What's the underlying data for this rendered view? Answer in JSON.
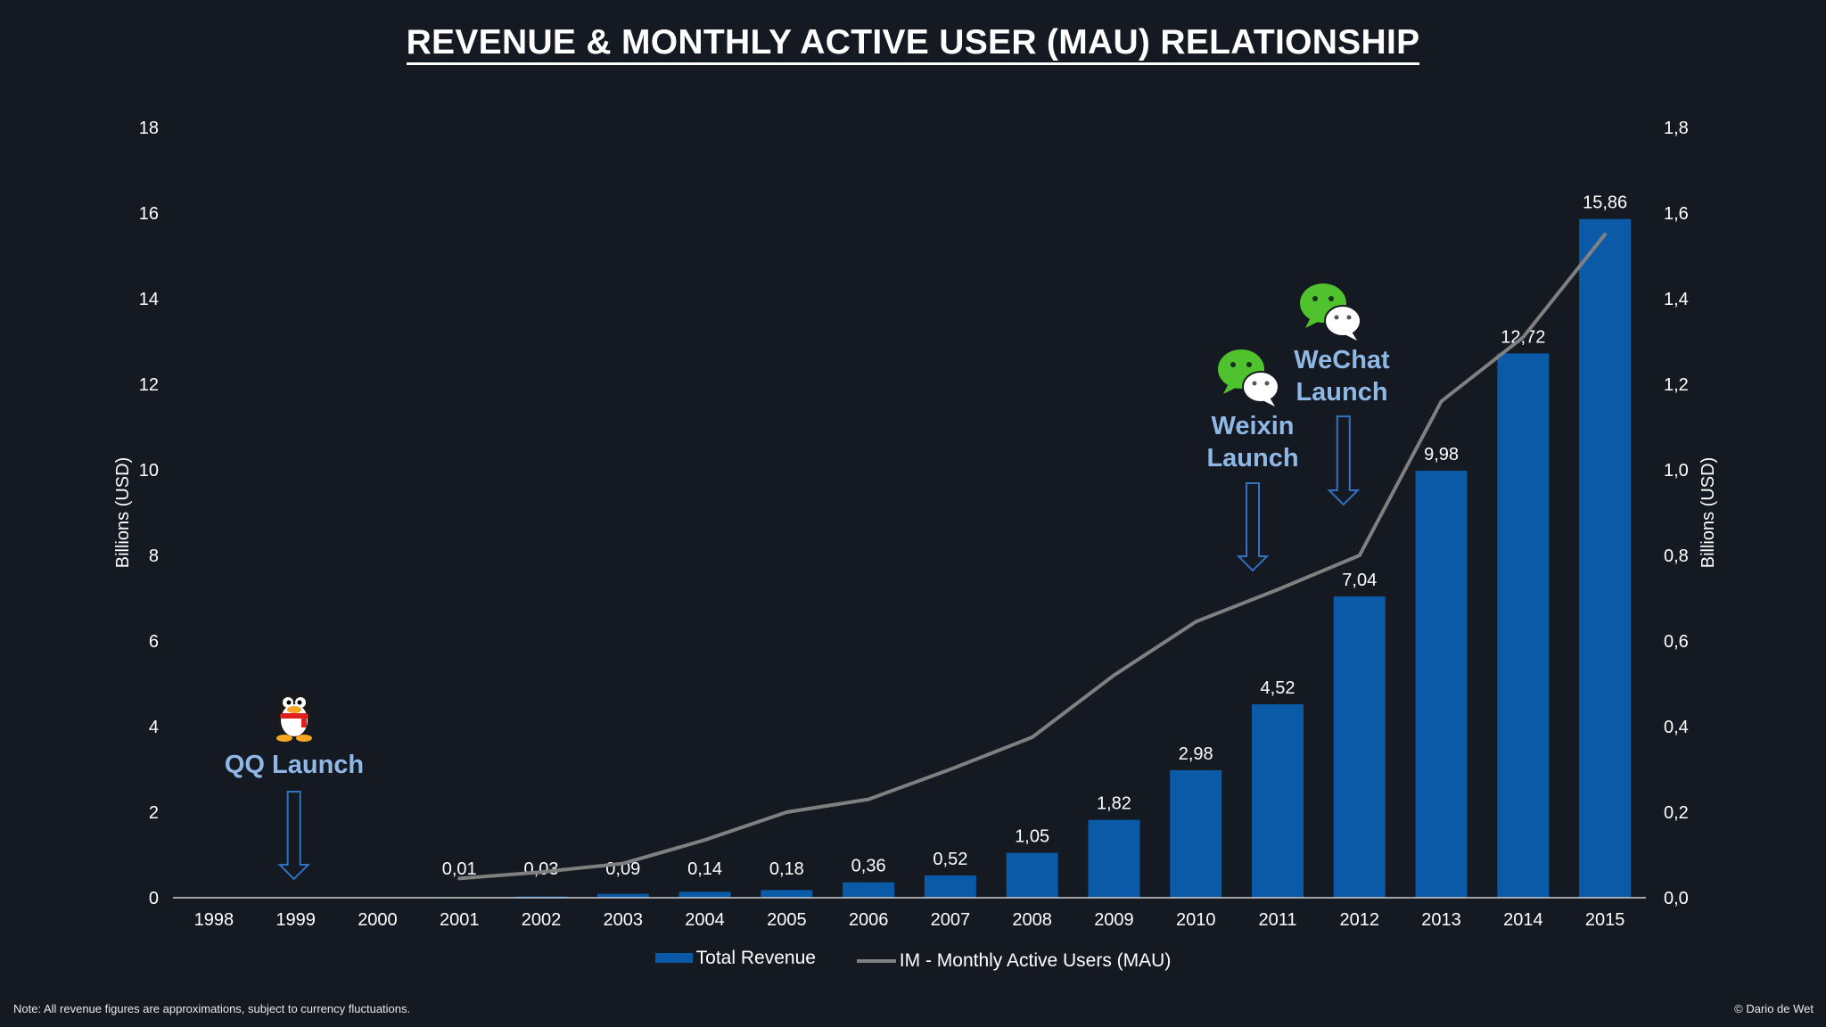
{
  "title": "REVENUE & MONTHLY ACTIVE USER (MAU) RELATIONSHIP",
  "footnote": "Note: All revenue figures are approximations, subject to currency fluctuations.",
  "copyright": "© Dario de Wet",
  "colors": {
    "background": "#151922",
    "bar": "#0a5aa8",
    "line": "#808080",
    "annotation": "#8fb8e6",
    "arrow": "#2d73c2"
  },
  "annotations": {
    "qq": {
      "text": "QQ Launch",
      "year": "1999",
      "icon": "qq-penguin-icon"
    },
    "weixin": {
      "line1": "Weixin",
      "line2": "Launch",
      "year": "2011",
      "icon": "wechat-bubbles-icon"
    },
    "wechat": {
      "line1": "WeChat",
      "line2": "Launch",
      "year": "2012",
      "icon": "wechat-bubbles-icon"
    }
  },
  "chart_data": {
    "type": "bar",
    "categories": [
      "1998",
      "1999",
      "2000",
      "2001",
      "2002",
      "2003",
      "2004",
      "2005",
      "2006",
      "2007",
      "2008",
      "2009",
      "2010",
      "2011",
      "2012",
      "2013",
      "2014",
      "2015"
    ],
    "series": [
      {
        "name": "Total Revenue",
        "type": "bar",
        "axis": "left",
        "values": [
          null,
          null,
          null,
          0.01,
          0.03,
          0.09,
          0.14,
          0.18,
          0.36,
          0.52,
          1.05,
          1.82,
          2.98,
          4.52,
          7.04,
          9.98,
          12.72,
          15.86
        ],
        "labels": [
          "",
          "",
          "",
          "0,01",
          "0,03",
          "0,09",
          "0,14",
          "0,18",
          "0,36",
          "0,52",
          "1,05",
          "1,82",
          "2,98",
          "4,52",
          "7,04",
          "9,98",
          "12,72",
          "15,86"
        ]
      },
      {
        "name": "IM - Monthly Active Users (MAU)",
        "type": "line",
        "axis": "right",
        "values": [
          null,
          null,
          null,
          0.045,
          0.06,
          0.08,
          0.135,
          0.2,
          0.23,
          0.3,
          0.375,
          0.52,
          0.645,
          0.72,
          0.8,
          1.16,
          1.31,
          1.55
        ]
      }
    ],
    "yAxisLeft": {
      "label": "Billions (USD)",
      "min": 0,
      "max": 18,
      "step": 2,
      "ticks": [
        "0",
        "2",
        "4",
        "6",
        "8",
        "10",
        "12",
        "14",
        "16",
        "18"
      ]
    },
    "yAxisRight": {
      "label": "Billions (USD)",
      "min": 0,
      "max": 1.8,
      "step": 0.2,
      "ticks": [
        "0,0",
        "0,2",
        "0,4",
        "0,6",
        "0,8",
        "1,0",
        "1,2",
        "1,4",
        "1,6",
        "1,8"
      ]
    },
    "grid": false,
    "legend": {
      "placement": "bottom",
      "entries": [
        "Total Revenue",
        "IM - Monthly Active Users (MAU)"
      ]
    }
  }
}
